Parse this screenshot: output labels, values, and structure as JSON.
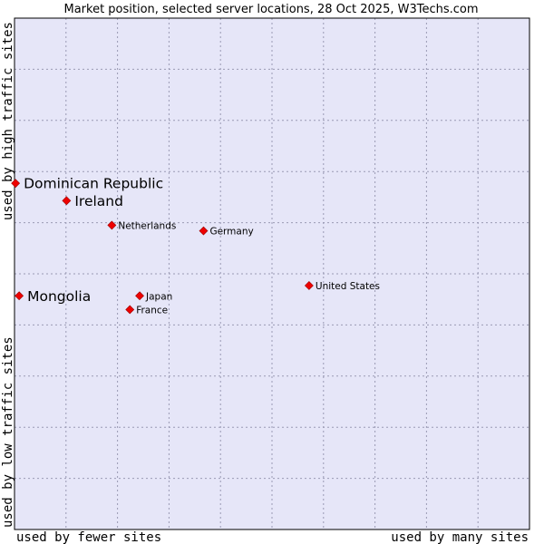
{
  "chart_data": {
    "type": "scatter",
    "title": "Market position, selected server locations, 28 Oct 2025, W3Techs.com",
    "xlabel_low": "used by fewer sites",
    "xlabel_high": "used by many sites",
    "ylabel_low": "used by low traffic sites",
    "ylabel_high": "used by high traffic sites",
    "xlim": [
      0,
      100
    ],
    "ylim": [
      0,
      100
    ],
    "grid": true,
    "points": [
      {
        "name": "Dominican Republic",
        "x": 0.2,
        "y": 67.7,
        "highlight": true
      },
      {
        "name": "Ireland",
        "x": 10.1,
        "y": 64.3,
        "highlight": true
      },
      {
        "name": "Mongolia",
        "x": 0.9,
        "y": 45.7,
        "highlight": true
      },
      {
        "name": "Netherlands",
        "x": 18.9,
        "y": 59.5,
        "highlight": false
      },
      {
        "name": "Germany",
        "x": 36.7,
        "y": 58.4,
        "highlight": false
      },
      {
        "name": "United States",
        "x": 57.2,
        "y": 47.7,
        "highlight": false
      },
      {
        "name": "Japan",
        "x": 24.3,
        "y": 45.7,
        "highlight": false
      },
      {
        "name": "France",
        "x": 22.4,
        "y": 43.0,
        "highlight": false
      }
    ]
  },
  "colors": {
    "plot_bg": "#e6e6f8",
    "marker": "#ee0000",
    "border": "#000000"
  }
}
